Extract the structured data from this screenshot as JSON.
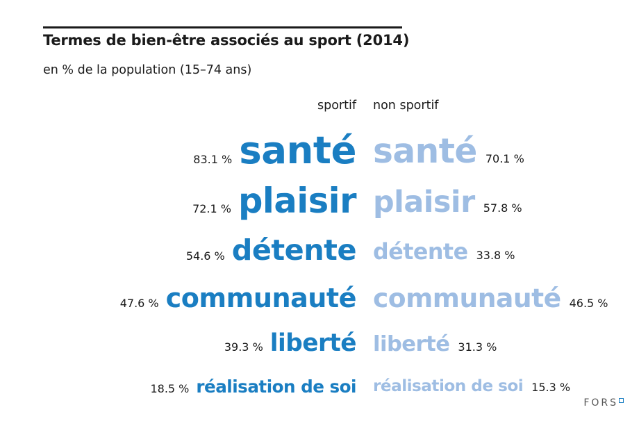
{
  "chart_data": {
    "type": "table",
    "title": "Termes de bien-être associés au sport (2014)",
    "subtitle": "en % de la population (15–74 ans)",
    "series": [
      {
        "name": "sportif",
        "values": [
          83.1,
          72.1,
          54.6,
          47.6,
          39.3,
          18.5
        ]
      },
      {
        "name": "non sportif",
        "values": [
          70.1,
          57.8,
          33.8,
          46.5,
          31.3,
          15.3
        ]
      }
    ],
    "categories": [
      "santé",
      "plaisir",
      "détente",
      "communauté",
      "liberté",
      "réalisation de soi"
    ],
    "colors": {
      "sportif": "#1a7ec2",
      "non_sportif": "#9ebde3"
    },
    "value_labels": {
      "sportif": [
        "83.1 %",
        "72.1 %",
        "54.6 %",
        "47.6 %",
        "39.3 %",
        "18.5 %"
      ],
      "non_sportif": [
        "70.1 %",
        "57.8 %",
        "33.8 %",
        "46.5 %",
        "31.3 %",
        "15.3 %"
      ]
    }
  },
  "logo": {
    "text": "FORS"
  }
}
